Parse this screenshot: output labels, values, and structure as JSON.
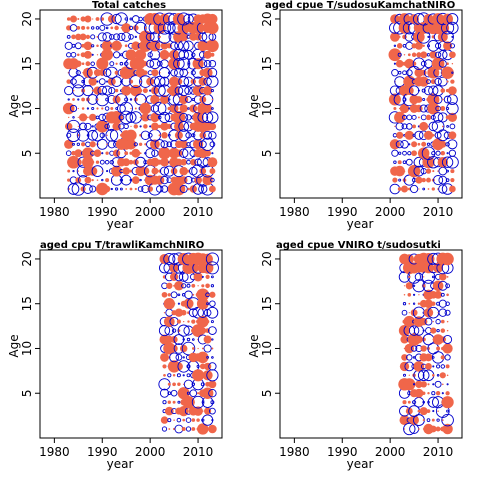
{
  "colors": {
    "positive": "#f0664a",
    "negative": "#0000cc",
    "frame": "#000000"
  },
  "chart_data": [
    {
      "type": "scatter",
      "title": "Total catches",
      "xlabel": "year",
      "ylabel": "Age",
      "xlim": [
        1977,
        2015
      ],
      "ylim": [
        0,
        21
      ],
      "xticks": [
        "1980",
        "1990",
        "2000",
        "2010"
      ],
      "yticks": [
        "5",
        "10",
        "15",
        "20"
      ],
      "grid": false,
      "year_range": [
        1983,
        2013
      ],
      "age_range": [
        1,
        20
      ],
      "glyph": "bubble: filled = positive residual, open = negative residual, area ~ magnitude",
      "heavy_years": [
        2001,
        2003,
        2005,
        2006,
        2007,
        2010,
        2011,
        2012
      ]
    },
    {
      "type": "scatter",
      "title": "aged    cpue    T/sudosuKamchatNIRO",
      "xlabel": "year",
      "ylabel": "Age",
      "xlim": [
        1977,
        2015
      ],
      "ylim": [
        0,
        21
      ],
      "xticks": [
        "1980",
        "1990",
        "2000",
        "2010"
      ],
      "yticks": [
        "5",
        "10",
        "15",
        "20"
      ],
      "grid": false,
      "year_range": [
        2001,
        2013
      ],
      "age_range": [
        1,
        20
      ],
      "glyph": "bubble: filled = positive residual, open = negative residual, area ~ magnitude"
    },
    {
      "type": "scatter",
      "title": "aged    cpu    T/trawliKamchNIRO",
      "xlabel": "year",
      "ylabel": "Age",
      "xlim": [
        1977,
        2015
      ],
      "ylim": [
        0,
        21
      ],
      "xticks": [
        "1980",
        "1990",
        "2000",
        "2010"
      ],
      "yticks": [
        "5",
        "10",
        "15",
        "20"
      ],
      "grid": false,
      "year_range": [
        2003,
        2013
      ],
      "age_range": [
        1,
        20
      ],
      "glyph": "bubble: filled = positive residual, open = negative residual, area ~ magnitude"
    },
    {
      "type": "scatter",
      "title": "aged    cpue    VNIRO    t/sudosutki",
      "xlabel": "year",
      "ylabel": "Age",
      "xlim": [
        1977,
        2015
      ],
      "ylim": [
        0,
        21
      ],
      "xticks": [
        "1980",
        "1990",
        "2000",
        "2010"
      ],
      "yticks": [
        "5",
        "10",
        "15",
        "20"
      ],
      "grid": false,
      "year_range": [
        2003,
        2012
      ],
      "age_range": [
        1,
        20
      ],
      "glyph": "bubble: filled = positive residual, open = negative residual, area ~ magnitude"
    }
  ]
}
